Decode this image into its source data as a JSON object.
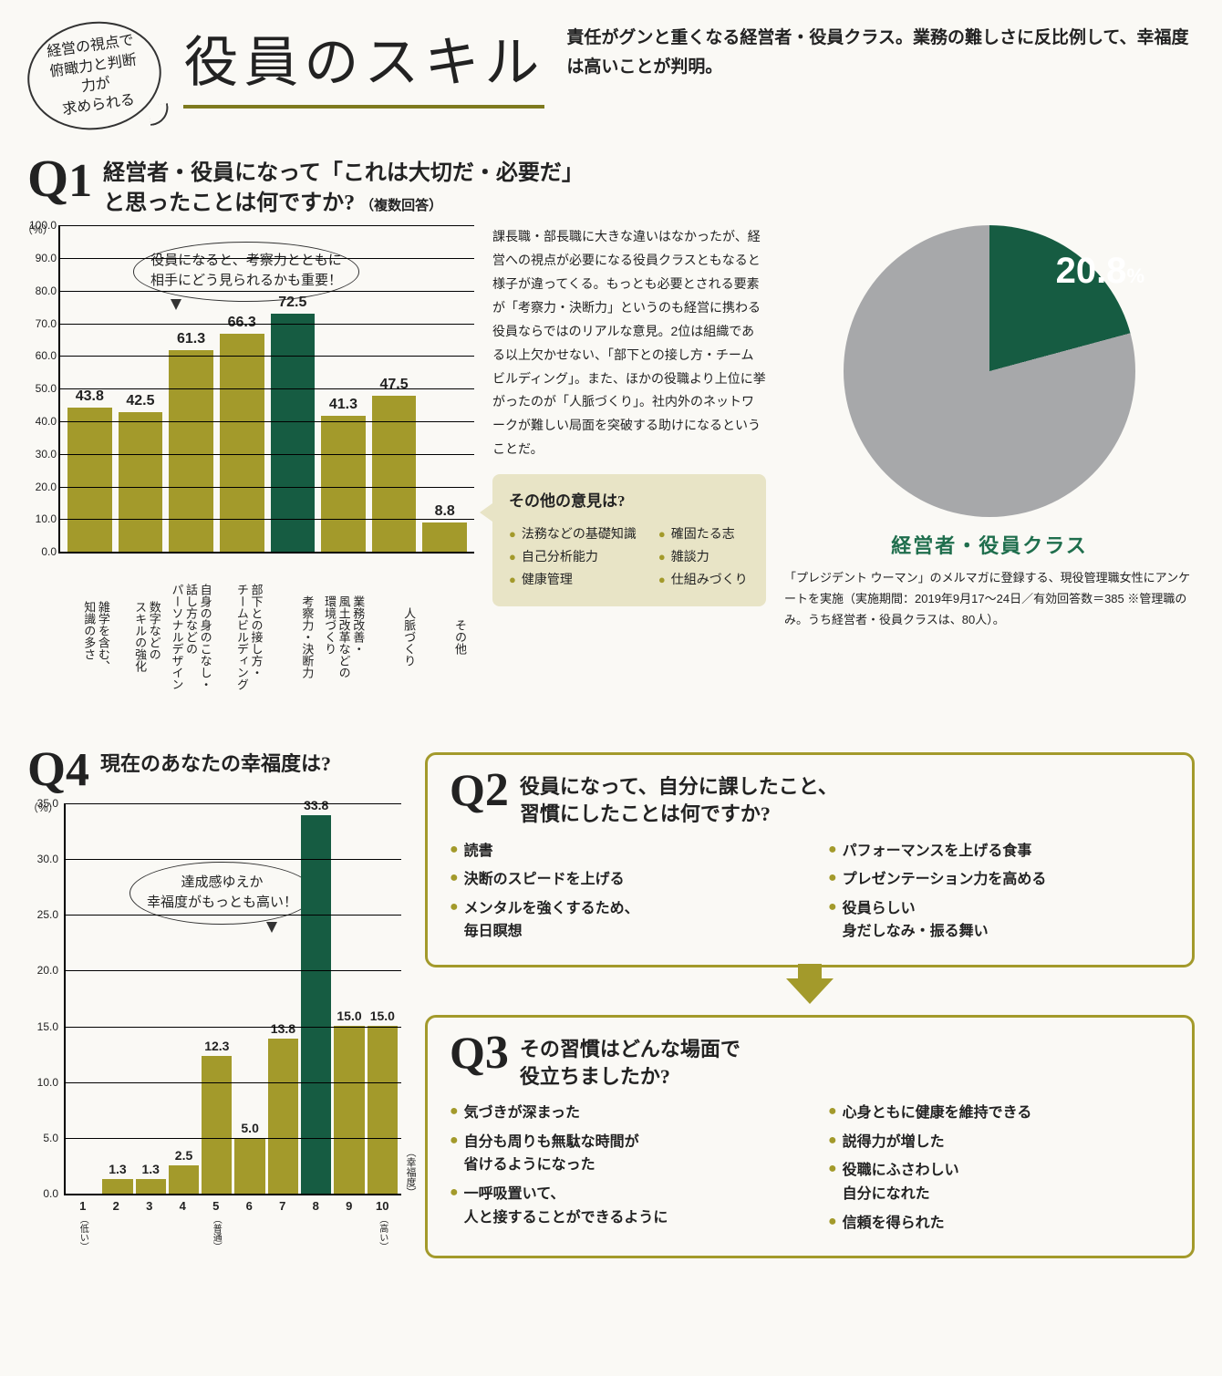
{
  "colors": {
    "olive": "#a39a2b",
    "dark_green": "#165c42",
    "grey": "#a7a8aa",
    "bg": "#faf9f5",
    "text": "#222222",
    "box_fill": "#e8e4c6"
  },
  "header": {
    "bubble": "経営の視点で\n俯瞰力と判断力が\n求められる",
    "title": "役員のスキル",
    "lead": "責任がグンと重くなる経営者・役員クラス。業務の難しさに反比例して、幸福度は高いことが判明。"
  },
  "q1": {
    "label": "Q1",
    "question": "経営者・役員になって「これは大切だ・必要だ」\nと思ったことは何ですか?",
    "question_sub": "（複数回答）",
    "chart": {
      "type": "bar",
      "y_unit": "（%）",
      "ylim": [
        0,
        100
      ],
      "ytick_step": 10,
      "categories": [
        "雑学を含む、\n知識の多さ",
        "数字などの\nスキルの強化",
        "自身の身のこなし・\n話し方などの\nパーソナルデザイン",
        "部下との接し方・\nチームビルディング",
        "考察力・決断力",
        "業務改善・\n風土改革などの\n環境づくり",
        "人脈づくり",
        "その他"
      ],
      "values": [
        43.8,
        42.5,
        61.3,
        66.3,
        72.5,
        41.3,
        47.5,
        8.8
      ],
      "highlight_index": 4,
      "bar_color": "#a39a2b",
      "highlight_color": "#165c42",
      "bubble": "役員になると、考察力とともに\n相手にどう見られるかも重要！"
    },
    "paragraph": "課長職・部長職に大きな違いはなかったが、経営への視点が必要になる役員クラスともなると様子が違ってくる。もっとも必要とされる要素が「考察力・決断力」というのも経営に携わる役員ならではのリアルな意見。2位は組織である以上欠かせない、「部下との接し方・チームビルディング」。また、ほかの役職より上位に挙がったのが「人脈づくり」。社内外のネットワークが難しい局面を突破する助けになるということだ。",
    "other_box": {
      "title": "その他の意見は?",
      "left": [
        "法務などの基礎知識",
        "自己分析能力",
        "健康管理"
      ],
      "right": [
        "確固たる志",
        "雑談力",
        "仕組みづくり"
      ]
    },
    "pie": {
      "value": 20.8,
      "value_label": "20.8",
      "slice_color": "#165c42",
      "rest_color": "#a7a8aa",
      "caption": "経営者・役員クラス"
    },
    "survey_note": "「プレジデント ウーマン」のメルマガに登録する、現役管理職女性にアンケートを実施（実施期間：2019年9月17〜24日／有効回答数＝385 ※管理職のみ。うち経営者・役員クラスは、80人）。"
  },
  "q4": {
    "label": "Q4",
    "question": "現在のあなたの幸福度は?",
    "chart": {
      "type": "bar",
      "y_unit": "（%）",
      "ylim": [
        0,
        35
      ],
      "ytick_step": 5,
      "x_axis_title": "（幸福度）",
      "categories": [
        "1",
        "2",
        "3",
        "4",
        "5",
        "6",
        "7",
        "8",
        "9",
        "10"
      ],
      "category_sub": {
        "1": "（低い）",
        "5": "（普通）",
        "10": "（高い）"
      },
      "values": [
        0,
        1.3,
        1.3,
        2.5,
        12.3,
        5.0,
        13.8,
        33.8,
        15.0,
        15.0
      ],
      "highlight_index": 7,
      "bar_color": "#a39a2b",
      "highlight_color": "#165c42",
      "bubble": "達成感ゆえか\n幸福度がもっとも高い！"
    }
  },
  "q2": {
    "label": "Q2",
    "question": "役員になって、自分に課したこと、\n習慣にしたことは何ですか?",
    "left": [
      "読書",
      "決断のスピードを上げる",
      "メンタルを強くするため、\n毎日瞑想"
    ],
    "right": [
      "パフォーマンスを上げる食事",
      "プレゼンテーション力を高める",
      "役員らしい\n身だしなみ・振る舞い"
    ]
  },
  "q3": {
    "label": "Q3",
    "question": "その習慣はどんな場面で\n役立ちましたか?",
    "left": [
      "気づきが深まった",
      "自分も周りも無駄な時間が\n省けるようになった",
      "一呼吸置いて、\n人と接することができるように"
    ],
    "right": [
      "心身ともに健康を維持できる",
      "説得力が増した",
      "役職にふさわしい\n自分になれた",
      "信頼を得られた"
    ]
  }
}
